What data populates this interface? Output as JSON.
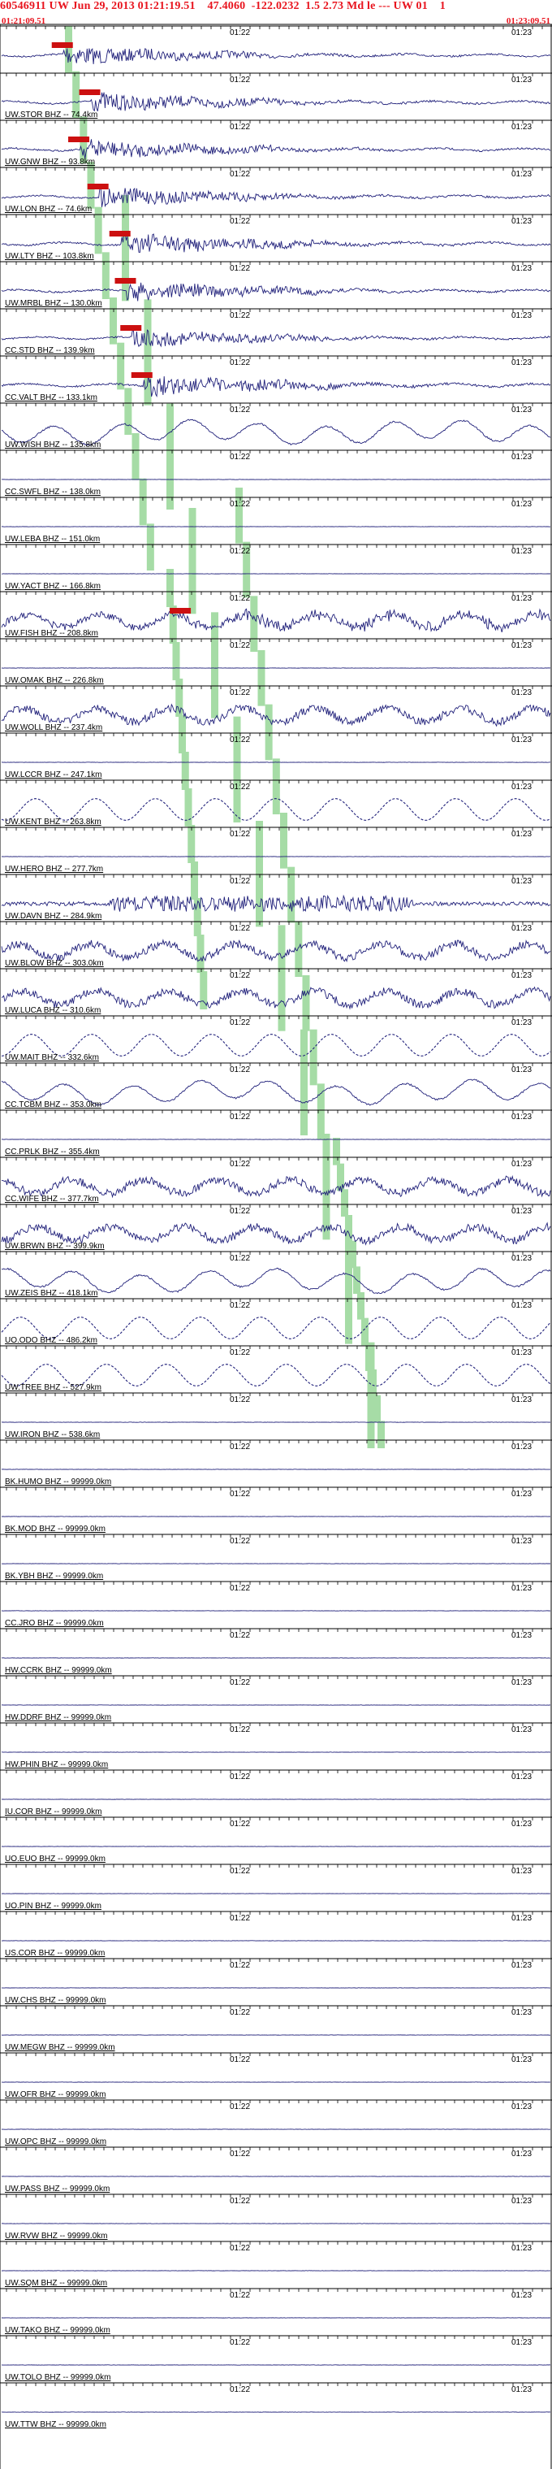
{
  "header": {
    "title": "60546911 UW Jun 29, 2013 01:21:19.51    47.4060  -122.0232  1.5 2.73 Md le --- UW 01    1",
    "start_time": "01:21:09.51",
    "end_time": "01:23:09.51"
  },
  "time_marks": {
    "left": "01:21",
    "mid": "01:22",
    "right": "01:23"
  },
  "colors": {
    "trace": "#20207a",
    "pick": "#cc1010",
    "phase": "#a6dca6",
    "header": "#e8141e",
    "grid": "#000000"
  },
  "traces": [
    {
      "label": "",
      "amp": 0.9,
      "kind": "local",
      "pick": 0.115
    },
    {
      "label": "UW.STOR BHZ -- 74.4km",
      "amp": 0.9,
      "kind": "local",
      "pick": 0.165
    },
    {
      "label": "UW.GNW BHZ -- 93.8km",
      "amp": 0.9,
      "kind": "local",
      "pick": 0.145
    },
    {
      "label": "UW.LON BHZ -- 74.6km",
      "amp": 0.9,
      "kind": "local",
      "pick": 0.18
    },
    {
      "label": "UW.LTY BHZ -- 103.8km",
      "amp": 1.0,
      "kind": "local",
      "pick": 0.22
    },
    {
      "label": "UW.MRBL BHZ -- 130.0km",
      "amp": 0.9,
      "kind": "local",
      "pick": 0.23
    },
    {
      "label": "CC.STD BHZ -- 139.9km",
      "amp": 0.8,
      "kind": "local",
      "pick": 0.24
    },
    {
      "label": "CC.VALT BHZ -- 133.1km",
      "amp": 1.0,
      "kind": "local",
      "pick": 0.26
    },
    {
      "label": "UW.WISH BHZ -- 135.8km",
      "amp": 1.0,
      "kind": "wave"
    },
    {
      "label": "CC.SWFL BHZ -- 138.0km",
      "amp": 0.0,
      "kind": "flat"
    },
    {
      "label": "UW.LEBA BHZ -- 151.0km",
      "amp": 0.0,
      "kind": "flat"
    },
    {
      "label": "UW.YACT BHZ -- 166.8km",
      "amp": 0.0,
      "kind": "flat"
    },
    {
      "label": "UW.FISH BHZ -- 208.8km",
      "amp": 0.9,
      "kind": "noisewave",
      "pick": 0.33
    },
    {
      "label": "UW.OMAK BHZ -- 226.8km",
      "amp": 0.0,
      "kind": "flat"
    },
    {
      "label": "UW.WOLL BHZ -- 237.4km",
      "amp": 1.0,
      "kind": "noisewave"
    },
    {
      "label": "UW.LCCR BHZ -- 247.1km",
      "amp": 0.0,
      "kind": "flat"
    },
    {
      "label": "UW.KENT BHZ -- 263.8km",
      "amp": 1.0,
      "kind": "dashwave"
    },
    {
      "label": "UW.HERO BHZ -- 277.7km",
      "amp": 0.0,
      "kind": "flat"
    },
    {
      "label": "UW.DAVN BHZ -- 284.9km",
      "amp": 0.7,
      "kind": "burst"
    },
    {
      "label": "UW.BLOW BHZ -- 303.0km",
      "amp": 1.0,
      "kind": "noisewave"
    },
    {
      "label": "UW.LUCA BHZ -- 310.6km",
      "amp": 1.0,
      "kind": "noisewave"
    },
    {
      "label": "UW.MAIT BHZ -- 332.6km",
      "amp": 1.0,
      "kind": "dashwave"
    },
    {
      "label": "CC.TCBM BHZ -- 353.0km",
      "amp": 1.0,
      "kind": "wave"
    },
    {
      "label": "CC.PRLK BHZ -- 355.4km",
      "amp": 0.0,
      "kind": "flat"
    },
    {
      "label": "CC.WIFE BHZ -- 377.7km",
      "amp": 1.0,
      "kind": "noisewave"
    },
    {
      "label": "UW.BRWN BHZ -- 399.9km",
      "amp": 1.0,
      "kind": "noisewave"
    },
    {
      "label": "UW.ZEIS BHZ -- 418.1km",
      "amp": 1.0,
      "kind": "wave"
    },
    {
      "label": "UO.ODO BHZ -- 486.2km",
      "amp": 1.0,
      "kind": "dashwave"
    },
    {
      "label": "UW.TREE BHZ -- 527.9km",
      "amp": 1.0,
      "kind": "dashwave"
    },
    {
      "label": "UW.IRON BHZ -- 538.6km",
      "amp": 0.0,
      "kind": "flat"
    },
    {
      "label": "BK.HUMO BHZ -- 99999.0km",
      "amp": 0.0,
      "kind": "flat"
    },
    {
      "label": "BK.MOD BHZ -- 99999.0km",
      "amp": 0.0,
      "kind": "flat"
    },
    {
      "label": "BK.YBH BHZ -- 99999.0km",
      "amp": 0.0,
      "kind": "flat"
    },
    {
      "label": "CC.JRO BHZ -- 99999.0km",
      "amp": 0.0,
      "kind": "flat"
    },
    {
      "label": "HW.CCRK BHZ -- 99999.0km",
      "amp": 0.0,
      "kind": "flat"
    },
    {
      "label": "HW.DDRF BHZ -- 99999.0km",
      "amp": 0.0,
      "kind": "flat"
    },
    {
      "label": "HW.PHIN BHZ -- 99999.0km",
      "amp": 0.0,
      "kind": "flat"
    },
    {
      "label": "IU.COR BHZ -- 99999.0km",
      "amp": 0.0,
      "kind": "flat"
    },
    {
      "label": "UO.EUO BHZ -- 99999.0km",
      "amp": 0.0,
      "kind": "flat"
    },
    {
      "label": "UO.PIN BHZ -- 99999.0km",
      "amp": 0.0,
      "kind": "flat"
    },
    {
      "label": "US.COR BHZ -- 99999.0km",
      "amp": 0.0,
      "kind": "flat"
    },
    {
      "label": "UW.CHS BHZ -- 99999.0km",
      "amp": 0.0,
      "kind": "flat"
    },
    {
      "label": "UW.MEGW BHZ -- 99999.0km",
      "amp": 0.0,
      "kind": "flat"
    },
    {
      "label": "UW.OFR BHZ -- 99999.0km",
      "amp": 0.0,
      "kind": "flat"
    },
    {
      "label": "UW.OPC BHZ -- 99999.0km",
      "amp": 0.0,
      "kind": "flat"
    },
    {
      "label": "UW.PASS BHZ -- 99999.0km",
      "amp": 0.0,
      "kind": "flat"
    },
    {
      "label": "UW.RVW BHZ -- 99999.0km",
      "amp": 0.0,
      "kind": "flat"
    },
    {
      "label": "UW.SQM BHZ -- 99999.0km",
      "amp": 0.0,
      "kind": "flat"
    },
    {
      "label": "UW.TAKO BHZ -- 99999.0km",
      "amp": 0.0,
      "kind": "flat"
    },
    {
      "label": "UW.TOLO BHZ -- 99999.0km",
      "amp": 0.0,
      "kind": "flat"
    },
    {
      "label": "UW.TTW BHZ -- 99999.0km",
      "amp": 0.0,
      "kind": "flat"
    }
  ]
}
